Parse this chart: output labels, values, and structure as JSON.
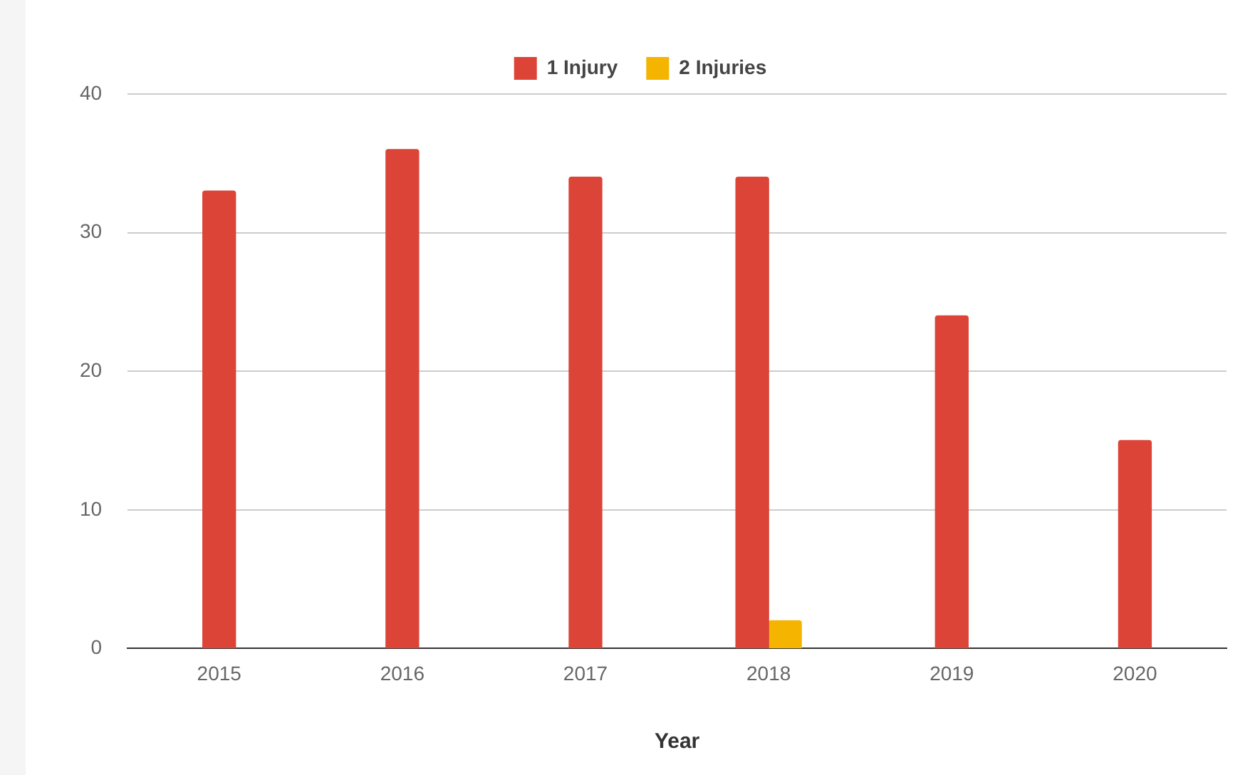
{
  "chart_data": {
    "type": "bar",
    "xlabel": "Year",
    "categories": [
      "2015",
      "2016",
      "2017",
      "2018",
      "2019",
      "2020"
    ],
    "series": [
      {
        "name": "1 Injury",
        "color": "#db4437",
        "values": [
          33,
          36,
          34,
          34,
          24,
          15
        ]
      },
      {
        "name": "2 Injuries",
        "color": "#f4b400",
        "values": [
          null,
          null,
          null,
          2,
          null,
          null
        ]
      }
    ],
    "ylim": [
      0,
      40
    ],
    "yticks": [
      0,
      10,
      20,
      30,
      40
    ],
    "grid": "y",
    "legend": "top"
  }
}
